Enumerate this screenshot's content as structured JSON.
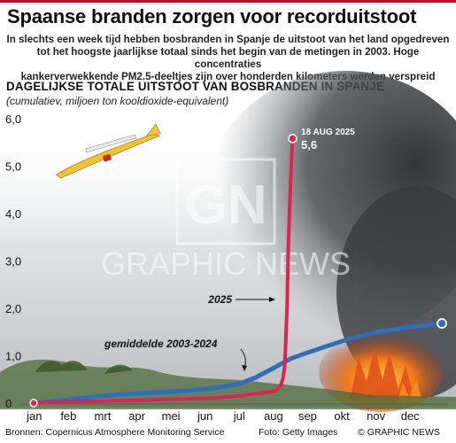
{
  "header": {
    "title": "Spaanse branden zorgen voor recorduitstoot",
    "subtitle_lines": [
      "In slechts een week tijd hebben bosbranden in Spanje de uitstoot van het land opgedreven",
      "tot het hoogste jaarlijkse totaal sinds het begin van de metingen in 2003. Hoge concentraties",
      "kankerverwekkende PM2.5-deeltjes zijn over honderden kilometers werden verspreid"
    ]
  },
  "chart_title": "DAGELIJKSE TOTALE UITSTOOT VAN BOSBRANDEN IN SPANJE",
  "chart_subtitle": "(cumulatiev, miljoen ton kooldioxide-equivalent)",
  "watermark": {
    "logo": "GN",
    "text": "GRAPHIC NEWS"
  },
  "footer": {
    "source": "Bronnen: Copernicus Atmosphere Monitoring Service",
    "photo": "Foto: Getty Images",
    "credit": "© GRAPHIC NEWS"
  },
  "colors": {
    "series_2025": "#d9264f",
    "series_average": "#2f6fb8",
    "accent_bar": "#b8122e"
  },
  "icons": [
    "firefighting-aircraft-icon"
  ],
  "chart_data": {
    "type": "line",
    "title": "DAGELIJKSE TOTALE UITSTOOT VAN BOSBRANDEN IN SPANJE",
    "subtitle": "(cumulatiev, miljoen ton kooldioxide-equivalent)",
    "xlabel": "",
    "ylabel": "",
    "x_ticks": [
      "jan",
      "feb",
      "mrt",
      "apr",
      "mei",
      "jun",
      "jul",
      "aug",
      "sep",
      "okt",
      "nov",
      "dec"
    ],
    "y_ticks": [
      "0",
      "1,0",
      "2,0",
      "3,0",
      "4,0",
      "5,0",
      "6,0"
    ],
    "ylim": [
      0,
      6
    ],
    "xlim_month": [
      1,
      13
    ],
    "grid": false,
    "legend": "inline labels",
    "series": [
      {
        "name": "2025",
        "x_month": [
          1.0,
          2.0,
          3.0,
          4.0,
          5.0,
          6.0,
          6.5,
          7.0,
          7.3,
          7.6,
          7.9,
          8.1,
          8.25,
          8.3,
          8.35,
          8.38,
          8.42,
          8.45,
          8.5,
          8.55,
          8.58
        ],
        "values": [
          0.02,
          0.04,
          0.06,
          0.08,
          0.1,
          0.12,
          0.14,
          0.17,
          0.2,
          0.23,
          0.25,
          0.28,
          0.42,
          0.55,
          0.8,
          1.3,
          2.1,
          3.2,
          4.3,
          5.2,
          5.6
        ]
      },
      {
        "name": "gemiddelde 2003-2024",
        "x_month": [
          1.0,
          1.5,
          2.0,
          2.5,
          3.0,
          3.5,
          4.0,
          4.5,
          5.0,
          5.5,
          6.0,
          6.5,
          7.0,
          7.5,
          8.0,
          8.5,
          9.0,
          9.5,
          10.0,
          10.5,
          11.0,
          11.5,
          12.0,
          12.5,
          12.95
        ],
        "values": [
          0.02,
          0.05,
          0.09,
          0.13,
          0.17,
          0.2,
          0.22,
          0.24,
          0.26,
          0.28,
          0.31,
          0.36,
          0.42,
          0.56,
          0.75,
          0.95,
          1.08,
          1.2,
          1.32,
          1.42,
          1.51,
          1.57,
          1.62,
          1.66,
          1.7
        ]
      }
    ],
    "annotations": [
      {
        "text": "18 AUG 2025",
        "value": "5,6",
        "target": "2025 peak"
      },
      {
        "text": "2025",
        "target": "2025 line"
      },
      {
        "text": "gemiddelde 2003-2024",
        "target": "average line"
      }
    ]
  }
}
